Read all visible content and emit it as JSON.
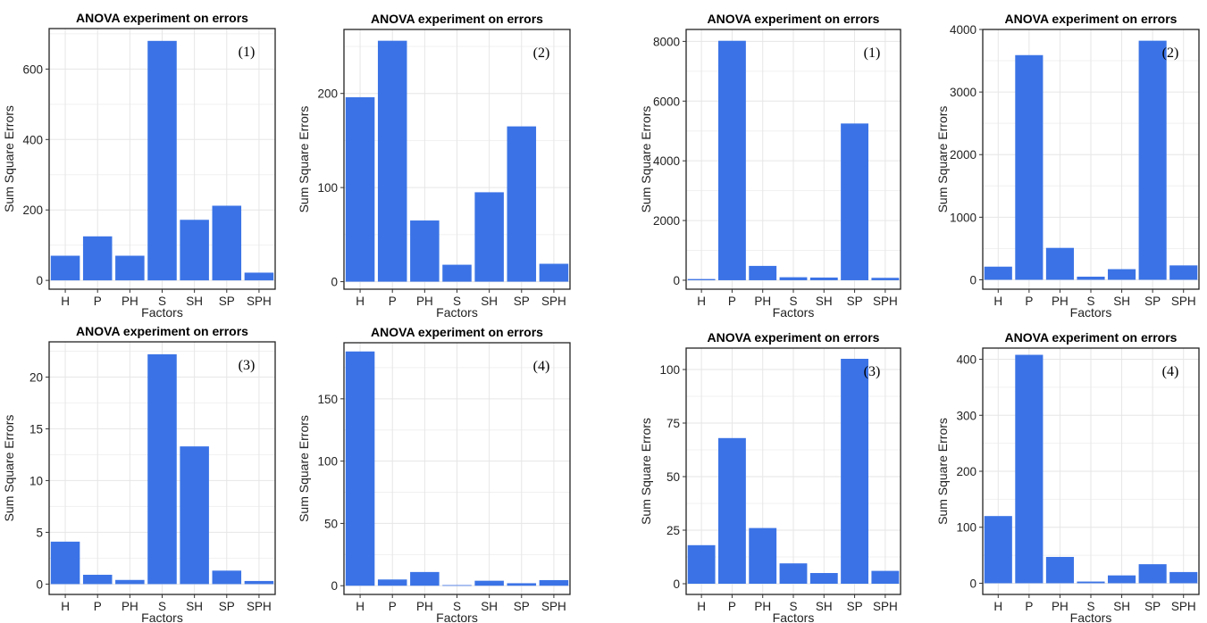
{
  "chart_data": [
    {
      "type": "bar",
      "title": "ANOVA experiment on errors",
      "panel_label": "(1)",
      "xlabel": "Factors",
      "ylabel": "Sum Square Errors",
      "categories": [
        "H",
        "P",
        "PH",
        "S",
        "SH",
        "SP",
        "SPH"
      ],
      "values": [
        70,
        125,
        70,
        680,
        172,
        212,
        22
      ],
      "ylim": [
        -25,
        715
      ],
      "yticks": [
        0,
        200,
        400,
        600
      ],
      "grid": true,
      "color": "#3b73e6"
    },
    {
      "type": "bar",
      "title": "ANOVA experiment on errors",
      "panel_label": "(2)",
      "xlabel": "Factors",
      "ylabel": "Sum Square Errors",
      "categories": [
        "H",
        "P",
        "PH",
        "S",
        "SH",
        "SP",
        "SPH"
      ],
      "values": [
        196,
        256,
        65,
        18,
        95,
        165,
        19
      ],
      "ylim": [
        -8,
        268
      ],
      "yticks": [
        0,
        100,
        200
      ],
      "grid": true,
      "color": "#3b73e6"
    },
    {
      "type": "bar",
      "title": "ANOVA experiment on errors",
      "panel_label": "(1)",
      "xlabel": "Factors",
      "ylabel": "Sum Square Errors",
      "categories": [
        "H",
        "P",
        "PH",
        "S",
        "SH",
        "SP",
        "SPH"
      ],
      "values": [
        40,
        8020,
        480,
        100,
        90,
        5250,
        80
      ],
      "ylim": [
        -300,
        8400
      ],
      "yticks": [
        0,
        2000,
        4000,
        6000,
        8000
      ],
      "grid": true,
      "color": "#3b73e6"
    },
    {
      "type": "bar",
      "title": "ANOVA experiment on errors",
      "panel_label": "(2)",
      "xlabel": "Factors",
      "ylabel": "Sum Square Errors",
      "categories": [
        "H",
        "P",
        "PH",
        "S",
        "SH",
        "SP",
        "SPH"
      ],
      "values": [
        210,
        3590,
        510,
        50,
        170,
        3820,
        230
      ],
      "ylim": [
        -150,
        4000
      ],
      "yticks": [
        0,
        1000,
        2000,
        3000,
        4000
      ],
      "grid": true,
      "color": "#3b73e6"
    },
    {
      "type": "bar",
      "title": "ANOVA experiment on errors",
      "panel_label": "(3)",
      "xlabel": "Factors",
      "ylabel": "Sum Square Errors",
      "categories": [
        "H",
        "P",
        "PH",
        "S",
        "SH",
        "SP",
        "SPH"
      ],
      "values": [
        4.1,
        0.9,
        0.4,
        22.2,
        13.3,
        1.3,
        0.3
      ],
      "ylim": [
        -1,
        23.4
      ],
      "yticks": [
        0,
        5,
        10,
        15,
        20
      ],
      "grid": true,
      "color": "#3b73e6"
    },
    {
      "type": "bar",
      "title": "ANOVA experiment on errors",
      "panel_label": "(4)",
      "xlabel": "Factors",
      "ylabel": "Sum Square Errors",
      "categories": [
        "H",
        "P",
        "PH",
        "S",
        "SH",
        "SP",
        "SPH"
      ],
      "values": [
        188,
        5,
        11,
        0.5,
        4,
        2,
        4.5
      ],
      "ylim": [
        -7,
        195
      ],
      "yticks": [
        0,
        50,
        100,
        150
      ],
      "grid": true,
      "color": "#3b73e6"
    },
    {
      "type": "bar",
      "title": "ANOVA experiment on errors",
      "panel_label": "(3)",
      "xlabel": "Factors",
      "ylabel": "Sum Square Errors",
      "categories": [
        "H",
        "P",
        "PH",
        "S",
        "SH",
        "SP",
        "SPH"
      ],
      "values": [
        18,
        68,
        26,
        9.5,
        5,
        105,
        6
      ],
      "ylim": [
        -5,
        110
      ],
      "yticks": [
        0,
        25,
        50,
        75,
        100
      ],
      "grid": true,
      "color": "#3b73e6"
    },
    {
      "type": "bar",
      "title": "ANOVA experiment on errors",
      "panel_label": "(4)",
      "xlabel": "Factors",
      "ylabel": "Sum Square Errors",
      "categories": [
        "H",
        "P",
        "PH",
        "S",
        "SH",
        "SP",
        "SPH"
      ],
      "values": [
        120,
        408,
        47,
        3,
        14,
        34,
        20
      ],
      "ylim": [
        -20,
        420
      ],
      "yticks": [
        0,
        100,
        200,
        300,
        400
      ],
      "grid": true,
      "color": "#3b73e6"
    }
  ]
}
